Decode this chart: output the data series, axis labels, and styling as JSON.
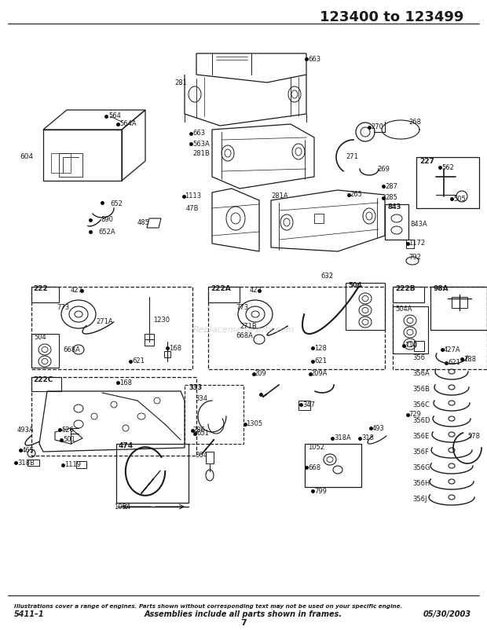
{
  "title": "123400 to 123499",
  "title_fontsize": 13,
  "title_fontweight": "bold",
  "footer_left": "5411–1",
  "footer_center": "Assemblies include all parts shown in frames.",
  "footer_right": "05/30/2003",
  "footer_page": "7",
  "footer_italic_text": "Illustrations cover a range of engines. Parts shown without corresponding text may not be used on your specific engine.",
  "bg_color": "#ffffff",
  "line_color": "#1a1a1a",
  "text_color": "#1a1a1a",
  "fig_width": 6.2,
  "fig_height": 8.02,
  "dpi": 100,
  "watermark": "ReplacementParts.com"
}
